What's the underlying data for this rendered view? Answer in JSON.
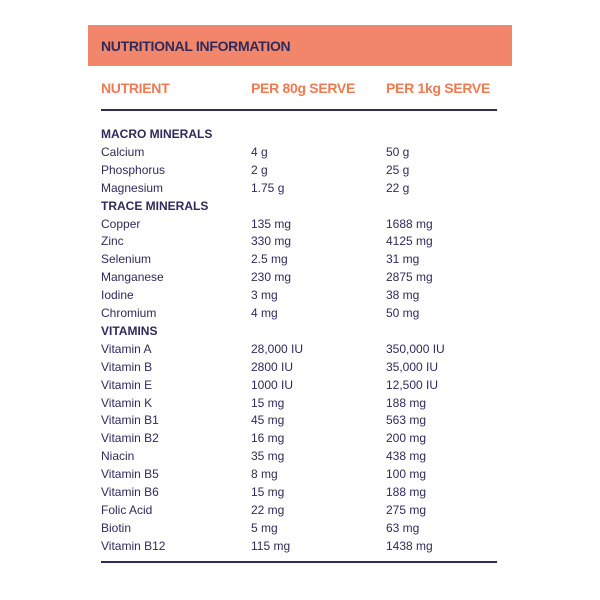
{
  "header": {
    "title": "NUTRITIONAL INFORMATION"
  },
  "table": {
    "columns": [
      "NUTRIENT",
      "PER 80g SERVE",
      "PER 1kg SERVE"
    ],
    "sections": [
      {
        "title": "MACRO MINERALS",
        "rows": [
          [
            "Calcium",
            "4 g",
            "50 g"
          ],
          [
            "Phosphorus",
            "2 g",
            "25 g"
          ],
          [
            "Magnesium",
            "1.75 g",
            "22 g"
          ]
        ]
      },
      {
        "title": "TRACE MINERALS",
        "rows": [
          [
            "Copper",
            "135 mg",
            "1688 mg"
          ],
          [
            "Zinc",
            "330 mg",
            "4125 mg"
          ],
          [
            "Selenium",
            "2.5 mg",
            "31 mg"
          ],
          [
            "Manganese",
            "230 mg",
            "2875 mg"
          ],
          [
            "Iodine",
            "3 mg",
            "38 mg"
          ],
          [
            "Chromium",
            "4 mg",
            "50 mg"
          ]
        ]
      },
      {
        "title": "VITAMINS",
        "rows": [
          [
            "Vitamin A",
            "28,000 IU",
            "350,000 IU"
          ],
          [
            "Vitamin B",
            "2800 IU",
            "35,000 IU"
          ],
          [
            "Vitamin E",
            "1000 IU",
            "12,500 IU"
          ],
          [
            "Vitamin K",
            "15 mg",
            "188 mg"
          ],
          [
            "Vitamin B1",
            "45 mg",
            "563 mg"
          ],
          [
            "Vitamin B2",
            "16 mg",
            "200 mg"
          ],
          [
            "Niacin",
            "35 mg",
            "438 mg"
          ],
          [
            "Vitamin B5",
            "8 mg",
            "100 mg"
          ],
          [
            "Vitamin B6",
            "15 mg",
            "188 mg"
          ],
          [
            "Folic Acid",
            "22 mg",
            "275 mg"
          ],
          [
            "Biotin",
            "5 mg",
            "63 mg"
          ],
          [
            "Vitamin B12",
            "115 mg",
            "1438 mg"
          ]
        ]
      }
    ]
  }
}
